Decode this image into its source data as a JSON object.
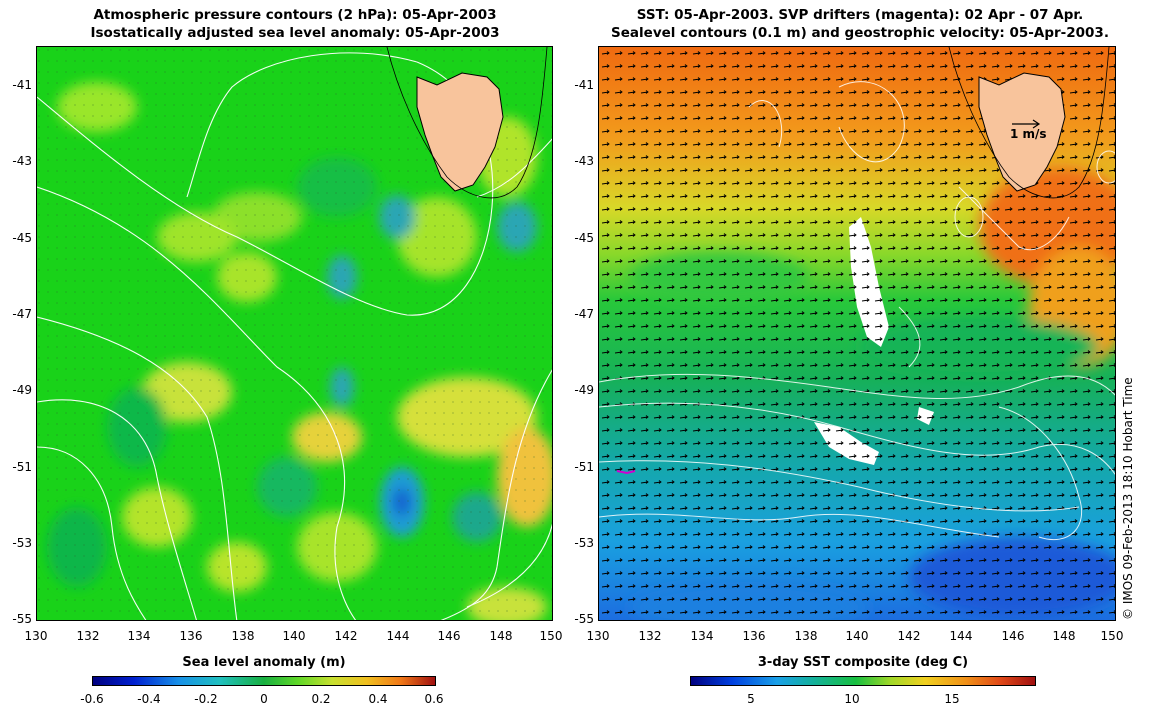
{
  "left_panel": {
    "title_line1": "Atmospheric pressure contours (2 hPa): 05-Apr-2003",
    "title_line2": "Isostatically adjusted sea level anomaly: 05-Apr-2003",
    "y_ticks": [
      "-41",
      "-43",
      "-45",
      "-47",
      "-49",
      "-51",
      "-53",
      "-55"
    ],
    "x_ticks": [
      "130",
      "132",
      "134",
      "136",
      "138",
      "140",
      "142",
      "144",
      "146",
      "148",
      "150"
    ],
    "colorbar": {
      "label": "Sea level anomaly (m)",
      "ticks": [
        "-0.6",
        "-0.4",
        "-0.2",
        "0",
        "0.2",
        "0.4",
        "0.6"
      ]
    }
  },
  "right_panel": {
    "title_line1": "SST: 05-Apr-2003. SVP drifters (magenta): 02 Apr - 07 Apr.",
    "title_line2": "Sealevel contours (0.1 m) and geostrophic velocity: 05-Apr-2003.",
    "y_ticks": [
      "-41",
      "-43",
      "-45",
      "-47",
      "-49",
      "-51",
      "-53",
      "-55"
    ],
    "x_ticks": [
      "130",
      "132",
      "134",
      "136",
      "138",
      "140",
      "142",
      "144",
      "146",
      "148",
      "150"
    ],
    "velocity_scale_label": "1 m/s",
    "colorbar": {
      "label": "3-day SST composite (deg C)",
      "ticks": [
        "5",
        "10",
        "15"
      ]
    }
  },
  "credit": "© IMOS 09-Feb-2013 18:10 Hobart Time",
  "map_extent": {
    "lon_min": 130,
    "lon_max": 150,
    "lat_min": -55,
    "lat_max": -40
  },
  "colors": {
    "land": "#f8c49c",
    "contour": "#ffffff",
    "drifter": "#d000d0"
  }
}
